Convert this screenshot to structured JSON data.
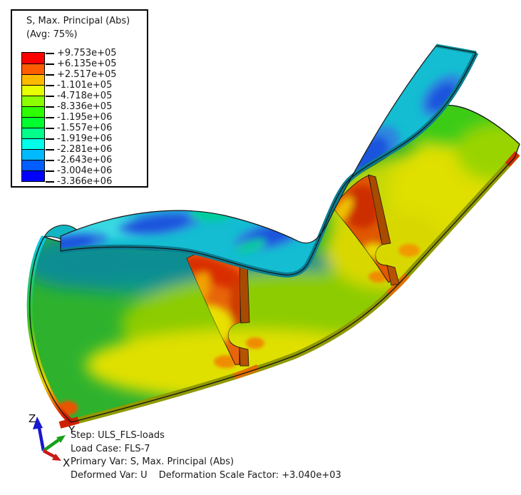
{
  "legend": {
    "title": "S, Max. Principal (Abs)",
    "subtitle": "(Avg: 75%)",
    "tick_labels": [
      "+9.753e+05",
      "+6.135e+05",
      "+2.517e+05",
      "-1.101e+05",
      "-4.718e+05",
      "-8.336e+05",
      "-1.195e+06",
      "-1.557e+06",
      "-1.919e+06",
      "-2.281e+06",
      "-2.643e+06",
      "-3.004e+06",
      "-3.366e+06"
    ],
    "band_colors": [
      "#ff0000",
      "#ff5d00",
      "#ffba00",
      "#e8ff00",
      "#8bff00",
      "#2eff00",
      "#00ff2e",
      "#00ff8b",
      "#00ffe8",
      "#00baff",
      "#005dff",
      "#0000ff"
    ]
  },
  "status": {
    "step": "Step: ULS_FLS-loads",
    "load_case": "Load Case: FLS-7",
    "primary_var": "Primary Var: S, Max. Principal (Abs)",
    "deformed_var": "Deformed Var: U",
    "scale_factor": "Deformation Scale Factor: +3.040e+03"
  },
  "triad": {
    "x": {
      "label": "X",
      "color": "#cc1818"
    },
    "y": {
      "label": "Y",
      "color": "#18a018"
    },
    "z": {
      "label": "Z",
      "color": "#1818d0"
    }
  },
  "render_colors": {
    "deck_base": "#14bdd2",
    "deck_blob_blue": "#1d55dd",
    "shell_teal": "#0f9a88",
    "shell_green": "#2eb22e",
    "shell_yellow": "#e0e000",
    "web_orange": "#e8650a",
    "web_flange": "#a84a00",
    "edge_olive": "#8f9900",
    "hotspot_orange": "#f08c00"
  }
}
